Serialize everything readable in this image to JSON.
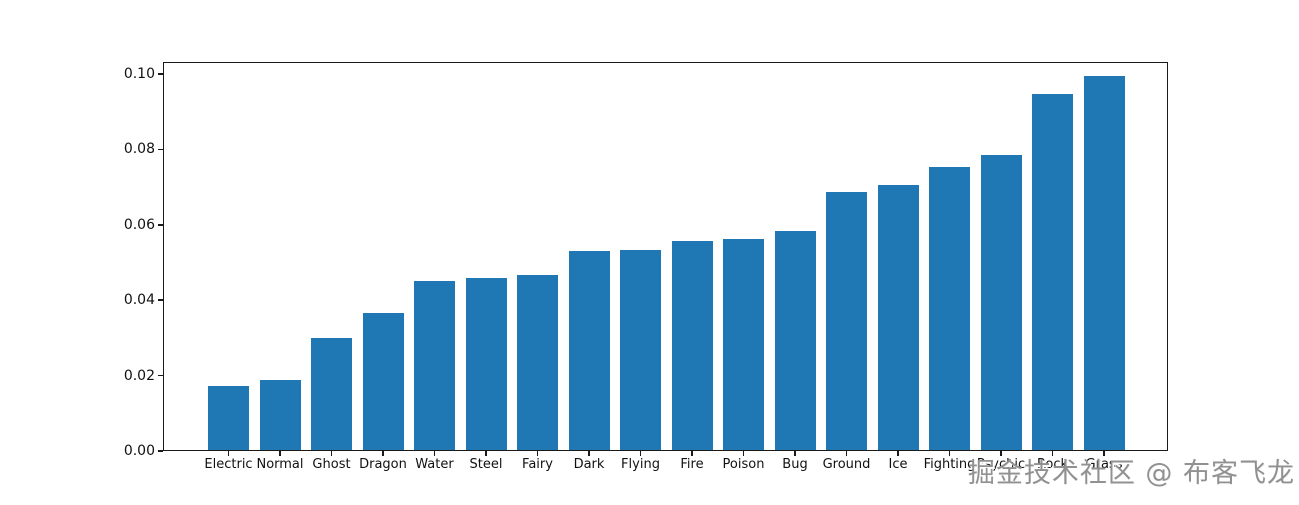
{
  "page": {
    "background": "#ffffff"
  },
  "chart_data": {
    "type": "bar",
    "title": "",
    "xlabel": "",
    "ylabel": "",
    "categories": [
      "Electric",
      "Normal",
      "Ghost",
      "Dragon",
      "Water",
      "Steel",
      "Fairy",
      "Dark",
      "Flying",
      "Fire",
      "Poison",
      "Bug",
      "Ground",
      "Ice",
      "Fighting",
      "Psychic",
      "Rock",
      "Grass"
    ],
    "values": [
      0.0173,
      0.0188,
      0.03,
      0.0367,
      0.045,
      0.046,
      0.0468,
      0.053,
      0.0533,
      0.0556,
      0.0562,
      0.0583,
      0.0687,
      0.0706,
      0.0754,
      0.0786,
      0.0948,
      0.0994
    ],
    "ylim": [
      0,
      0.1032
    ],
    "ytick_labels": [
      "0.00",
      "0.02",
      "0.04",
      "0.06",
      "0.08",
      "0.10"
    ],
    "ytick_values": [
      0.0,
      0.02,
      0.04,
      0.06,
      0.08,
      0.1
    ],
    "bar_color": "#1f77b4",
    "grid": false,
    "legend": null,
    "sort_order": "ascending"
  },
  "watermark": {
    "text": "掘金技术社区 @ 布客飞龙",
    "color": "#919191"
  }
}
